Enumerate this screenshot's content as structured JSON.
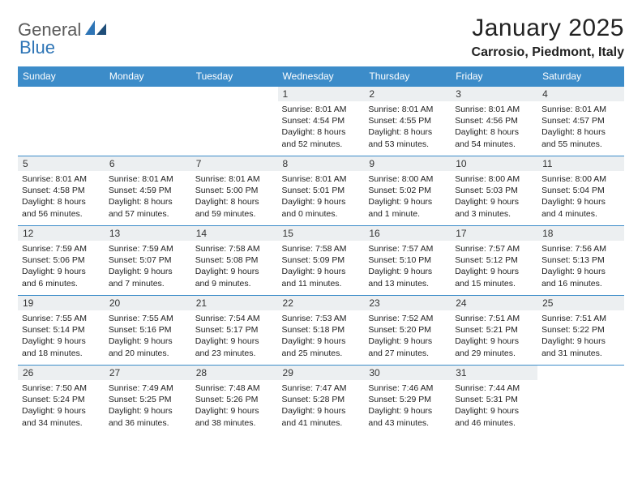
{
  "brand": {
    "general": "General",
    "blue": "Blue"
  },
  "title": "January 2025",
  "location": "Carrosio, Piedmont, Italy",
  "style": {
    "header_bg": "#3c8cc9",
    "header_text": "#ffffff",
    "daybar_bg": "#eceff1",
    "cell_border": "#3c8cc9",
    "page_bg": "#ffffff",
    "title_fontsize": 30,
    "location_fontsize": 16,
    "dayheader_fontsize": 12,
    "cell_fontsize": 10.5
  },
  "dayHeaders": [
    "Sunday",
    "Monday",
    "Tuesday",
    "Wednesday",
    "Thursday",
    "Friday",
    "Saturday"
  ],
  "weeks": [
    [
      null,
      null,
      null,
      {
        "n": "1",
        "sr": "8:01 AM",
        "ss": "4:54 PM",
        "dl": "8 hours and 52 minutes."
      },
      {
        "n": "2",
        "sr": "8:01 AM",
        "ss": "4:55 PM",
        "dl": "8 hours and 53 minutes."
      },
      {
        "n": "3",
        "sr": "8:01 AM",
        "ss": "4:56 PM",
        "dl": "8 hours and 54 minutes."
      },
      {
        "n": "4",
        "sr": "8:01 AM",
        "ss": "4:57 PM",
        "dl": "8 hours and 55 minutes."
      }
    ],
    [
      {
        "n": "5",
        "sr": "8:01 AM",
        "ss": "4:58 PM",
        "dl": "8 hours and 56 minutes."
      },
      {
        "n": "6",
        "sr": "8:01 AM",
        "ss": "4:59 PM",
        "dl": "8 hours and 57 minutes."
      },
      {
        "n": "7",
        "sr": "8:01 AM",
        "ss": "5:00 PM",
        "dl": "8 hours and 59 minutes."
      },
      {
        "n": "8",
        "sr": "8:01 AM",
        "ss": "5:01 PM",
        "dl": "9 hours and 0 minutes."
      },
      {
        "n": "9",
        "sr": "8:00 AM",
        "ss": "5:02 PM",
        "dl": "9 hours and 1 minute."
      },
      {
        "n": "10",
        "sr": "8:00 AM",
        "ss": "5:03 PM",
        "dl": "9 hours and 3 minutes."
      },
      {
        "n": "11",
        "sr": "8:00 AM",
        "ss": "5:04 PM",
        "dl": "9 hours and 4 minutes."
      }
    ],
    [
      {
        "n": "12",
        "sr": "7:59 AM",
        "ss": "5:06 PM",
        "dl": "9 hours and 6 minutes."
      },
      {
        "n": "13",
        "sr": "7:59 AM",
        "ss": "5:07 PM",
        "dl": "9 hours and 7 minutes."
      },
      {
        "n": "14",
        "sr": "7:58 AM",
        "ss": "5:08 PM",
        "dl": "9 hours and 9 minutes."
      },
      {
        "n": "15",
        "sr": "7:58 AM",
        "ss": "5:09 PM",
        "dl": "9 hours and 11 minutes."
      },
      {
        "n": "16",
        "sr": "7:57 AM",
        "ss": "5:10 PM",
        "dl": "9 hours and 13 minutes."
      },
      {
        "n": "17",
        "sr": "7:57 AM",
        "ss": "5:12 PM",
        "dl": "9 hours and 15 minutes."
      },
      {
        "n": "18",
        "sr": "7:56 AM",
        "ss": "5:13 PM",
        "dl": "9 hours and 16 minutes."
      }
    ],
    [
      {
        "n": "19",
        "sr": "7:55 AM",
        "ss": "5:14 PM",
        "dl": "9 hours and 18 minutes."
      },
      {
        "n": "20",
        "sr": "7:55 AM",
        "ss": "5:16 PM",
        "dl": "9 hours and 20 minutes."
      },
      {
        "n": "21",
        "sr": "7:54 AM",
        "ss": "5:17 PM",
        "dl": "9 hours and 23 minutes."
      },
      {
        "n": "22",
        "sr": "7:53 AM",
        "ss": "5:18 PM",
        "dl": "9 hours and 25 minutes."
      },
      {
        "n": "23",
        "sr": "7:52 AM",
        "ss": "5:20 PM",
        "dl": "9 hours and 27 minutes."
      },
      {
        "n": "24",
        "sr": "7:51 AM",
        "ss": "5:21 PM",
        "dl": "9 hours and 29 minutes."
      },
      {
        "n": "25",
        "sr": "7:51 AM",
        "ss": "5:22 PM",
        "dl": "9 hours and 31 minutes."
      }
    ],
    [
      {
        "n": "26",
        "sr": "7:50 AM",
        "ss": "5:24 PM",
        "dl": "9 hours and 34 minutes."
      },
      {
        "n": "27",
        "sr": "7:49 AM",
        "ss": "5:25 PM",
        "dl": "9 hours and 36 minutes."
      },
      {
        "n": "28",
        "sr": "7:48 AM",
        "ss": "5:26 PM",
        "dl": "9 hours and 38 minutes."
      },
      {
        "n": "29",
        "sr": "7:47 AM",
        "ss": "5:28 PM",
        "dl": "9 hours and 41 minutes."
      },
      {
        "n": "30",
        "sr": "7:46 AM",
        "ss": "5:29 PM",
        "dl": "9 hours and 43 minutes."
      },
      {
        "n": "31",
        "sr": "7:44 AM",
        "ss": "5:31 PM",
        "dl": "9 hours and 46 minutes."
      },
      null
    ]
  ],
  "labels": {
    "sunrise": "Sunrise: ",
    "sunset": "Sunset: ",
    "daylight": "Daylight: "
  }
}
